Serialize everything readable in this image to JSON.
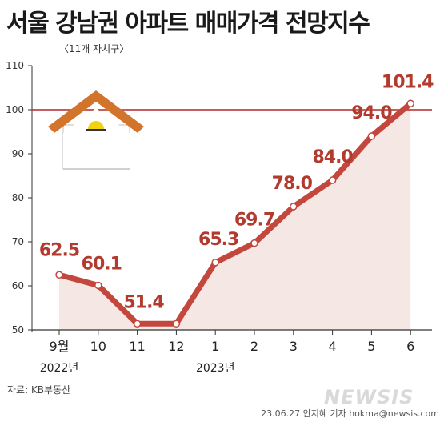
{
  "title": "서울 강남권 아파트 매매가격 전망지수",
  "subtitle": "〈11개 자치구〉",
  "source": "자료: KB부동산",
  "credit": "23.06.27 안지혜 기자 hokma@newsis.com",
  "watermark": "NEWSIS",
  "chart_data": {
    "type": "line",
    "categories": [
      "9월",
      "10",
      "11",
      "12",
      "1",
      "2",
      "3",
      "4",
      "5",
      "6"
    ],
    "year_labels": [
      {
        "index": 0,
        "label": "2022년"
      },
      {
        "index": 4,
        "label": "2023년"
      }
    ],
    "values": [
      62.5,
      60.1,
      51.4,
      51.4,
      65.3,
      69.7,
      78.0,
      84.0,
      94.0,
      101.4
    ],
    "value_labels": [
      "62.5",
      "60.1",
      "51.4",
      "",
      "65.3",
      "69.7",
      "78.0",
      "84.0",
      "94.0",
      "101.4"
    ],
    "ylim": [
      50,
      110
    ],
    "yticks": [
      50,
      60,
      70,
      80,
      90,
      100,
      110
    ],
    "reference_line": 100,
    "grid": false,
    "colors": {
      "line": "#c4473d",
      "label": "#b23a2f",
      "area": "#f5e8e4",
      "reference": "#b02a2a",
      "marker_fill": "#ffffff"
    },
    "icon": "house-icon"
  }
}
